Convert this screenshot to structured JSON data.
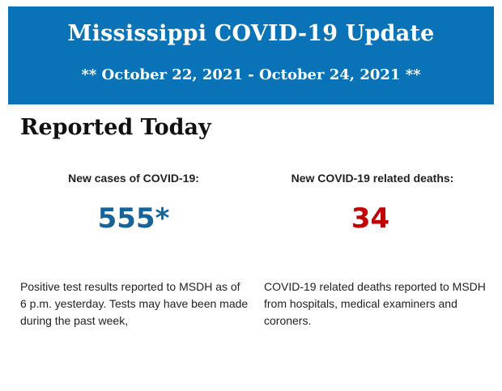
{
  "header": {
    "title": "Mississippi COVID-19 Update",
    "dates": "** October 22, 2021 - October 24, 2021 **",
    "background_color": "#0a73b7"
  },
  "reported_today": {
    "heading": "Reported Today",
    "cases": {
      "label": "New cases of COVID-19:",
      "value": "555*",
      "color": "#17649a",
      "description": "Positive test results reported to MSDH as of 6 p.m. yesterday. Tests may have been made during the past week,"
    },
    "deaths": {
      "label": "New COVID-19 related deaths:",
      "value": "34",
      "color": "#c00000",
      "description": "COVID-19 related deaths reported to MSDH from hospitals, medical examiners and coroners."
    }
  }
}
